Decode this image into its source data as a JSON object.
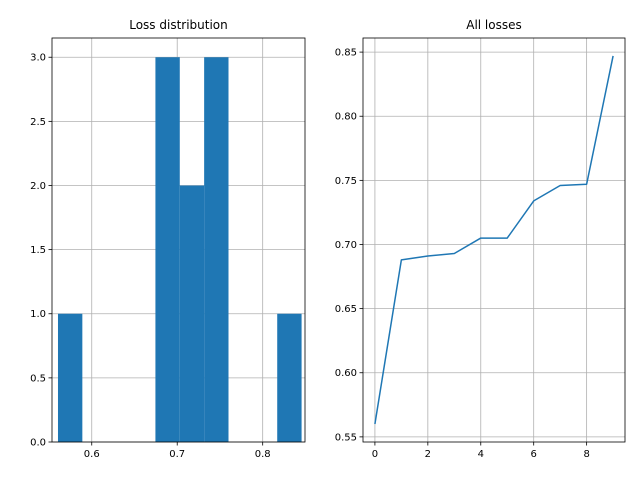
{
  "chart_data": [
    {
      "type": "bar",
      "title": "Loss distribution",
      "xlabel": "",
      "ylabel": "",
      "xlim": [
        0.5535,
        0.8495
      ],
      "ylim": [
        0,
        3.15
      ],
      "xticks": [
        0.6,
        0.7,
        0.8
      ],
      "xtick_labels": [
        "0.6",
        "0.7",
        "0.8"
      ],
      "yticks": [
        0,
        0.5,
        1,
        1.5,
        2,
        2.5,
        3
      ],
      "ytick_labels": [
        "0.0",
        "0.5",
        "1.0",
        "1.5",
        "2.0",
        "2.5",
        "3.0"
      ],
      "grid": true,
      "color": "#1f77b4",
      "bins": [
        {
          "x0": 0.5605,
          "x1": 0.589,
          "count": 1
        },
        {
          "x0": 0.589,
          "x1": 0.6175,
          "count": 0
        },
        {
          "x0": 0.6175,
          "x1": 0.646,
          "count": 0
        },
        {
          "x0": 0.646,
          "x1": 0.6745,
          "count": 0
        },
        {
          "x0": 0.6745,
          "x1": 0.703,
          "count": 3
        },
        {
          "x0": 0.703,
          "x1": 0.7315,
          "count": 2
        },
        {
          "x0": 0.7315,
          "x1": 0.76,
          "count": 3
        },
        {
          "x0": 0.76,
          "x1": 0.7885,
          "count": 0
        },
        {
          "x0": 0.7885,
          "x1": 0.817,
          "count": 0
        },
        {
          "x0": 0.817,
          "x1": 0.8455,
          "count": 1
        }
      ]
    },
    {
      "type": "line",
      "title": "All losses",
      "xlabel": "",
      "ylabel": "",
      "xlim": [
        -0.45,
        9.45
      ],
      "ylim": [
        0.546,
        0.861
      ],
      "xticks": [
        0,
        2,
        4,
        6,
        8
      ],
      "xtick_labels": [
        "0",
        "2",
        "4",
        "6",
        "8"
      ],
      "yticks": [
        0.55,
        0.6,
        0.65,
        0.7,
        0.75,
        0.8,
        0.85
      ],
      "ytick_labels": [
        "0.55",
        "0.60",
        "0.65",
        "0.70",
        "0.75",
        "0.80",
        "0.85"
      ],
      "grid": true,
      "color": "#1f77b4",
      "x": [
        0,
        1,
        2,
        3,
        4,
        5,
        6,
        7,
        8,
        9
      ],
      "y": [
        0.56,
        0.688,
        0.691,
        0.693,
        0.705,
        0.705,
        0.734,
        0.746,
        0.747,
        0.847
      ]
    }
  ]
}
